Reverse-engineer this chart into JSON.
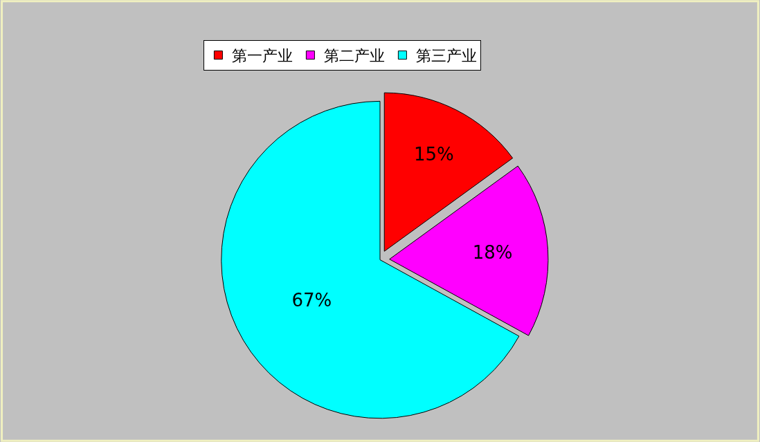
{
  "chart_data": {
    "type": "pie",
    "categories": [
      "第一产业",
      "第二产业",
      "第三产业"
    ],
    "values": [
      15,
      18,
      67
    ],
    "colors": [
      "#ff0000",
      "#ff00ff",
      "#00ffff"
    ],
    "value_labels": [
      "15%",
      "18%",
      "67%"
    ],
    "legend": "top"
  }
}
